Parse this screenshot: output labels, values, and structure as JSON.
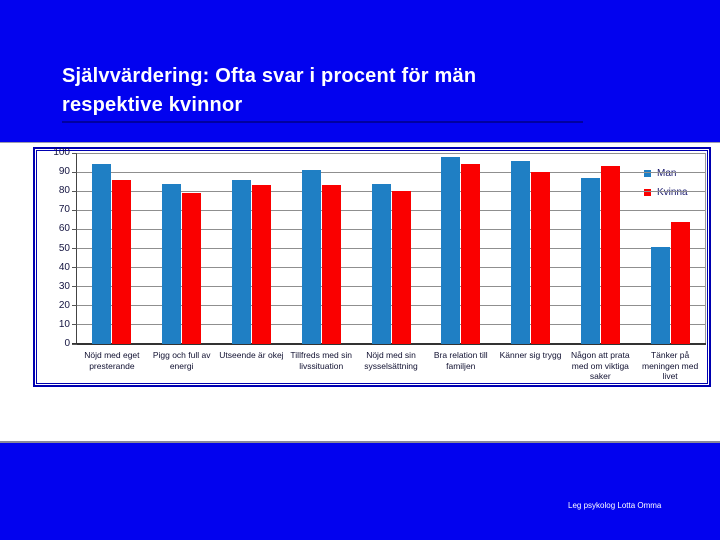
{
  "slide": {
    "title_line1": "Självvärdering: Ofta svar i procent för män",
    "title_line2": "respektive kvinnor",
    "footer": "Leg psykolog Lotta Omma",
    "background_color": "#0202EF",
    "title_color": "#FFFFFF"
  },
  "chart_data": {
    "type": "bar",
    "title": "",
    "xlabel": "",
    "ylabel": "",
    "categories": [
      "Nöjd med eget presterande",
      "Pigg och full av energi",
      "Utseende är okej",
      "Tillfreds med sin livssituation",
      "Nöjd med sin sysselsättning",
      "Bra relation till familjen",
      "Känner sig trygg",
      "Någon att prata med om viktiga saker",
      "Tänker på meningen med livet"
    ],
    "series": [
      {
        "name": "Man",
        "color": "#1F7FC4",
        "values": [
          94,
          84,
          86,
          91,
          84,
          98,
          96,
          87,
          51
        ]
      },
      {
        "name": "Kvinna",
        "color": "#FA0000",
        "values": [
          86,
          79,
          83,
          83,
          80,
          94,
          90,
          93,
          64
        ]
      }
    ],
    "ylim": [
      0,
      100
    ],
    "yticks": [
      0,
      10,
      20,
      30,
      40,
      50,
      60,
      70,
      80,
      90,
      100
    ],
    "grid": true,
    "legend_position": "inside-top-right"
  }
}
